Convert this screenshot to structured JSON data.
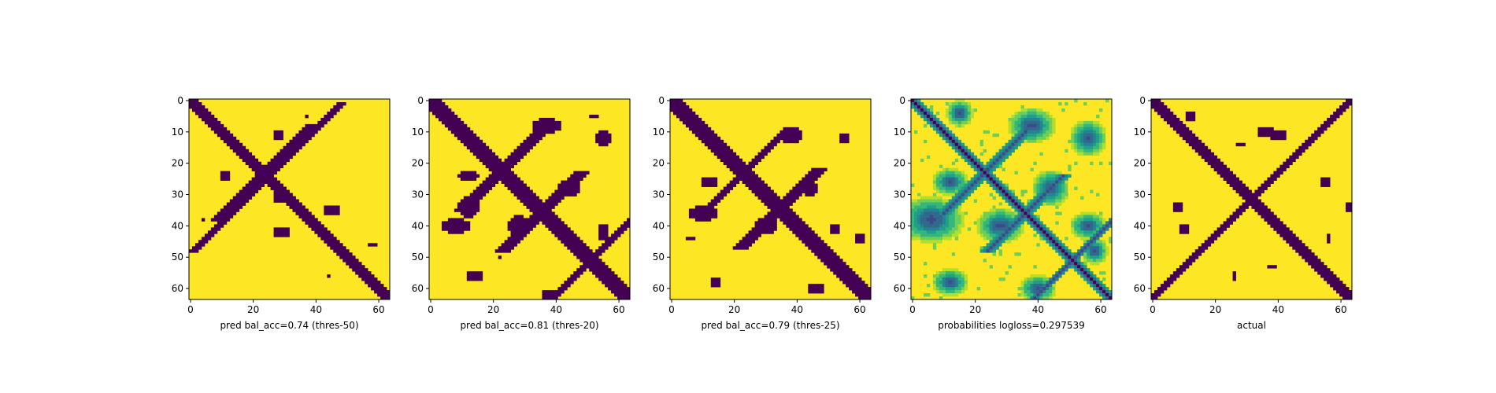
{
  "chart_data": [
    {
      "type": "heatmap",
      "title": "pred bal_acc=0.74 (thres-50)",
      "xlabel": "pred bal_acc=0.74 (thres-50)",
      "ylabel": "",
      "matrix_size": 64,
      "xlim": [
        -0.5,
        63.5
      ],
      "ylim": [
        63.5,
        -0.5
      ],
      "x_ticks": [
        0,
        20,
        40,
        60
      ],
      "y_ticks": [
        0,
        10,
        20,
        30,
        40,
        50,
        60
      ],
      "values": "binary contact map: 1 = contact (dark purple), 0 = no contact (yellow)",
      "pattern": {
        "diagonal_width": 2,
        "anti_diagonal": [
          [
            20,
            26,
            1
          ],
          [
            36,
            13,
            1
          ]
        ],
        "blobs": [
          [
            24,
            11,
            1,
            1
          ],
          [
            35,
            45,
            1,
            2
          ],
          [
            42,
            29,
            1,
            2
          ],
          [
            31,
            28,
            1,
            1
          ],
          [
            11,
            28,
            1,
            1
          ],
          [
            5,
            37,
            0,
            0
          ],
          [
            38,
            4,
            0,
            0
          ],
          [
            46,
            58,
            0,
            1
          ],
          [
            56,
            44,
            0,
            0
          ]
        ]
      }
    },
    {
      "type": "heatmap",
      "title": "pred bal_acc=0.81 (thres-20)",
      "xlabel": "pred bal_acc=0.81 (thres-20)",
      "ylabel": "",
      "matrix_size": 64,
      "xlim": [
        -0.5,
        63.5
      ],
      "ylim": [
        63.5,
        -0.5
      ],
      "x_ticks": [
        0,
        20,
        40,
        60
      ],
      "y_ticks": [
        0,
        10,
        20,
        30,
        40,
        50,
        60
      ],
      "values": "binary contact map: 1 = contact (dark purple), 0 = no contact (yellow)",
      "pattern": {
        "diagonal_width": 3,
        "anti_diagonal": [
          [
            22,
            23,
            2
          ],
          [
            35,
            36,
            2
          ],
          [
            52,
            50,
            1
          ]
        ],
        "blobs": [
          [
            8,
            37,
            2,
            4
          ],
          [
            24,
            12,
            1,
            3
          ],
          [
            28,
            44,
            2,
            3
          ],
          [
            34,
            12,
            3,
            3
          ],
          [
            40,
            8,
            2,
            4
          ],
          [
            40,
            28,
            3,
            3
          ],
          [
            12,
            55,
            2,
            2
          ],
          [
            42,
            55,
            2,
            1
          ],
          [
            56,
            14,
            1,
            2
          ],
          [
            62,
            38,
            1,
            2
          ],
          [
            50,
            22,
            0,
            0
          ],
          [
            5,
            52,
            0,
            1
          ]
        ]
      }
    },
    {
      "type": "heatmap",
      "title": "pred bal_acc=0.79 (thres-25)",
      "xlabel": "pred bal_acc=0.79 (thres-25)",
      "ylabel": "",
      "matrix_size": 64,
      "xlim": [
        -0.5,
        63.5
      ],
      "ylim": [
        63.5,
        -0.5
      ],
      "x_ticks": [
        0,
        20,
        40,
        60
      ],
      "y_ticks": [
        0,
        10,
        20,
        30,
        40,
        50,
        60
      ],
      "values": "binary contact map: 1 = contact (dark purple), 0 = no contact (yellow)",
      "pattern": {
        "diagonal_width": 3,
        "anti_diagonal": [
          [
            22,
            24,
            1
          ],
          [
            35,
            34,
            2
          ]
        ],
        "blobs": [
          [
            11,
            38,
            2,
            3
          ],
          [
            26,
            12,
            1,
            2
          ],
          [
            28,
            44,
            2,
            2
          ],
          [
            36,
            10,
            2,
            4
          ],
          [
            40,
            30,
            2,
            3
          ],
          [
            12,
            55,
            1,
            1
          ],
          [
            41,
            52,
            1,
            1
          ],
          [
            44,
            60,
            1,
            1
          ],
          [
            58,
            14,
            1,
            1
          ],
          [
            60,
            46,
            1,
            2
          ],
          [
            44,
            6,
            0,
            1
          ]
        ]
      }
    },
    {
      "type": "heatmap",
      "title": "probabilities logloss=0.297539",
      "xlabel": "probabilities logloss=0.297539",
      "ylabel": "",
      "matrix_size": 64,
      "xlim": [
        -0.5,
        63.5
      ],
      "ylim": [
        63.5,
        -0.5
      ],
      "x_ticks": [
        0,
        20,
        40,
        60
      ],
      "y_ticks": [
        0,
        10,
        20,
        30,
        40,
        50,
        60
      ],
      "values": "contact probability, colormap viridis reversed: 1 = dark purple, 0 = yellow",
      "pattern": {
        "diagonal_width": 2,
        "anti_diagonal": [
          [
            22,
            24,
            2
          ],
          [
            36,
            36,
            2
          ],
          [
            52,
            50,
            1
          ]
        ],
        "blobs": [
          [
            8,
            38,
            3,
            4
          ],
          [
            26,
            12,
            2,
            3
          ],
          [
            28,
            44,
            3,
            3
          ],
          [
            38,
            6,
            4,
            6
          ],
          [
            40,
            28,
            3,
            4
          ],
          [
            12,
            56,
            3,
            3
          ],
          [
            40,
            56,
            2,
            3
          ],
          [
            58,
            12,
            2,
            3
          ],
          [
            60,
            40,
            2,
            3
          ],
          [
            4,
            15,
            2,
            2
          ],
          [
            48,
            58,
            2,
            2
          ]
        ]
      }
    },
    {
      "type": "heatmap",
      "title": "actual",
      "xlabel": "actual",
      "ylabel": "",
      "matrix_size": 64,
      "xlim": [
        -0.5,
        63.5
      ],
      "ylim": [
        63.5,
        -0.5
      ],
      "x_ticks": [
        0,
        20,
        40,
        60
      ],
      "y_ticks": [
        0,
        10,
        20,
        30,
        40,
        50,
        60
      ],
      "values": "binary contact map: 1 = contact (dark purple), 0 = no contact (yellow)",
      "pattern": {
        "diagonal_width": 2,
        "anti_diagonal": [
          [
            0,
            63,
            1
          ]
        ],
        "blobs": [
          [
            10,
            36,
            1,
            2
          ],
          [
            11,
            40,
            1,
            2
          ],
          [
            34,
            8,
            1,
            1
          ],
          [
            41,
            10,
            1,
            1
          ],
          [
            14,
            28,
            0,
            1
          ],
          [
            56,
            26,
            1,
            0
          ],
          [
            53,
            38,
            0,
            1
          ],
          [
            44,
            56,
            1,
            0
          ],
          [
            34,
            63,
            1,
            1
          ],
          [
            26,
            55,
            1,
            1
          ],
          [
            5,
            12,
            1,
            1
          ]
        ]
      }
    }
  ],
  "colors": {
    "contact": "#440154",
    "background": "#fde725",
    "axis": "#000000"
  }
}
